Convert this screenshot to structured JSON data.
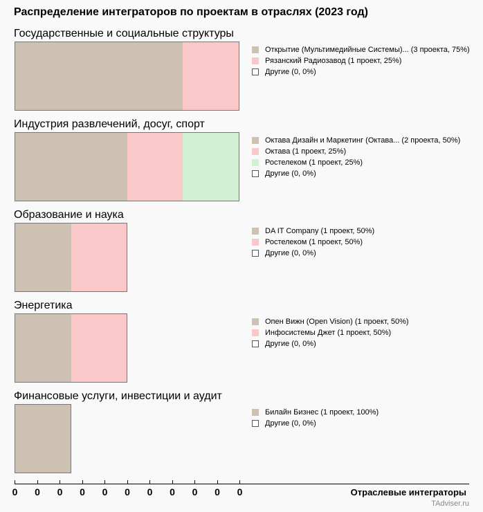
{
  "chart_data": {
    "type": "bar",
    "title": "Распределение интеграторов по проектам в отраслях (2023 год)",
    "xlabel": "Отраслевые интеграторы",
    "x_tick_labels": [
      "0",
      "0",
      "0",
      "0",
      "0",
      "0",
      "0",
      "0",
      "0",
      "0",
      "0"
    ],
    "groups": [
      {
        "name": "Государственные и социальные структуры",
        "segments": [
          {
            "label": "Открытие (Мультимедийные Системы)... (3 проекта, 75%)",
            "value": 3,
            "color": "#cdc1b4"
          },
          {
            "label": "Рязанский Радиозавод (1 проект, 25%)",
            "value": 1,
            "color": "#fbc8c9"
          },
          {
            "label": "Другие (0, 0%)",
            "value": 0,
            "color": "#ffffff"
          }
        ]
      },
      {
        "name": "Индустрия развлечений, досуг, спорт",
        "segments": [
          {
            "label": "Октава Дизайн и Маркетинг (Октава... (2 проекта, 50%)",
            "value": 2,
            "color": "#cdc1b4"
          },
          {
            "label": "Октава (1 проект, 25%)",
            "value": 1,
            "color": "#fbc8c9"
          },
          {
            "label": "Ростелеком (1 проект, 25%)",
            "value": 1,
            "color": "#d2f1d4"
          },
          {
            "label": "Другие (0, 0%)",
            "value": 0,
            "color": "#ffffff"
          }
        ]
      },
      {
        "name": "Образование и наука",
        "segments": [
          {
            "label": "DA IT Company (1 проект, 50%)",
            "value": 1,
            "color": "#cdc1b4"
          },
          {
            "label": "Ростелеком (1 проект, 50%)",
            "value": 1,
            "color": "#fbc8c9"
          },
          {
            "label": "Другие (0, 0%)",
            "value": 0,
            "color": "#ffffff"
          }
        ]
      },
      {
        "name": "Энергетика",
        "segments": [
          {
            "label": "Опен Вижн (Open Vision) (1 проект, 50%)",
            "value": 1,
            "color": "#cdc1b4"
          },
          {
            "label": "Инфосистемы Джет (1 проект, 50%)",
            "value": 1,
            "color": "#fbc8c9"
          },
          {
            "label": "Другие (0, 0%)",
            "value": 0,
            "color": "#ffffff"
          }
        ]
      },
      {
        "name": "Финансовые услуги, инвестиции и аудит",
        "segments": [
          {
            "label": "Билайн Бизнес (1 проект, 100%)",
            "value": 1,
            "color": "#cdc1b4"
          },
          {
            "label": "Другие (0, 0%)",
            "value": 0,
            "color": "#ffffff"
          }
        ]
      }
    ]
  },
  "watermark": "TAdviser.ru"
}
